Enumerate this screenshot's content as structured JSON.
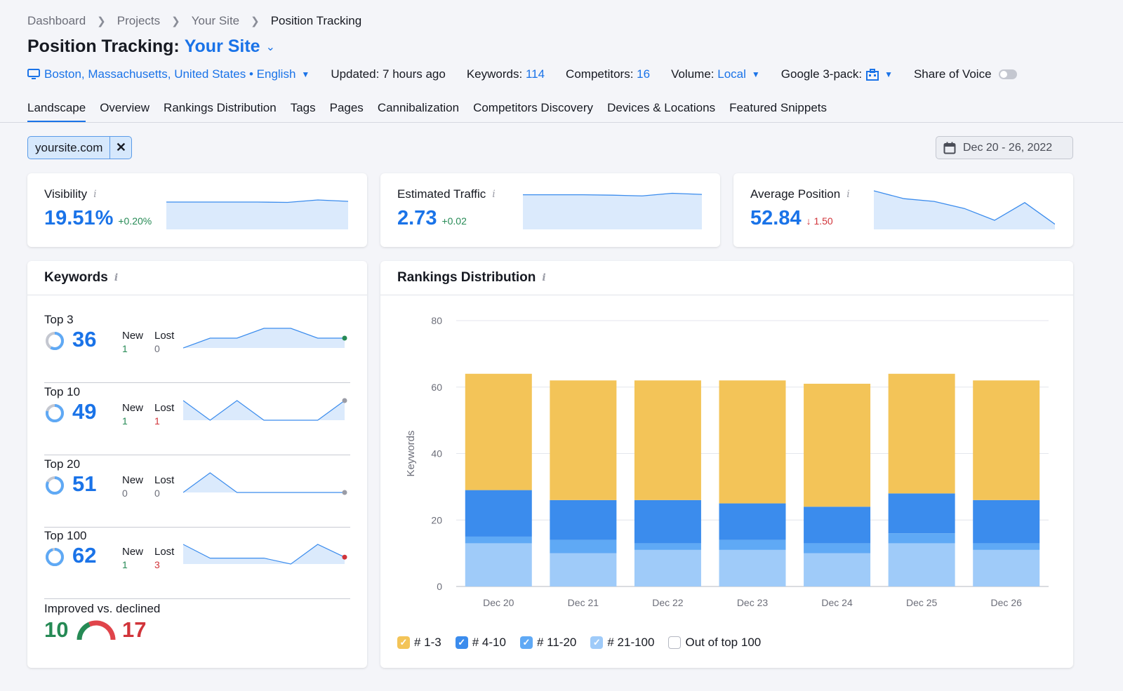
{
  "breadcrumb": [
    "Dashboard",
    "Projects",
    "Your Site",
    "Position Tracking"
  ],
  "title": {
    "prefix": "Position Tracking:",
    "site": "Your Site"
  },
  "meta": {
    "location": "Boston, Massachusetts, United States • English",
    "updated": "Updated: 7 hours ago",
    "keywords_label": "Keywords:",
    "keywords_value": "114",
    "competitors_label": "Competitors:",
    "competitors_value": "16",
    "volume_label": "Volume:",
    "volume_value": "Local",
    "google_label": "Google 3-pack:",
    "sov_label": "Share of Voice"
  },
  "tabs": [
    "Landscape",
    "Overview",
    "Rankings Distribution",
    "Tags",
    "Pages",
    "Cannibalization",
    "Competitors Discovery",
    "Devices & Locations",
    "Featured Snippets"
  ],
  "filter": {
    "label": "yoursite.com"
  },
  "date_range": "Dec 20 - 26, 2022",
  "stats": [
    {
      "label": "Visibility",
      "value": "19.51%",
      "delta": "+0.20%",
      "trend": [
        0.8,
        0.8,
        0.8,
        0.8,
        0.79,
        0.86,
        0.82
      ]
    },
    {
      "label": "Estimated Traffic",
      "value": "2.73",
      "delta": "+0.02",
      "trend": [
        0.95,
        0.95,
        0.95,
        0.94,
        0.92,
        0.99,
        0.96
      ]
    },
    {
      "label": "Average Position",
      "value": "52.84",
      "delta": "↓ 1.50",
      "trend": [
        1.0,
        0.8,
        0.73,
        0.55,
        0.25,
        0.7,
        0.15
      ]
    }
  ],
  "keywords_card": {
    "title": "Keywords",
    "new_label": "New",
    "lost_label": "Lost",
    "rows": [
      {
        "name": "Top 3",
        "value": "36",
        "new": "1",
        "lost": "0",
        "fill": 0.58,
        "trend": [
          0.0,
          0.5,
          0.5,
          1.0,
          1.0,
          0.5,
          0.5
        ],
        "dot": "#268a55"
      },
      {
        "name": "Top 10",
        "value": "49",
        "new": "1",
        "lost": "1",
        "fill": 0.79,
        "trend": [
          1.0,
          0.0,
          1.0,
          0.0,
          0.0,
          0.0,
          1.0
        ],
        "dot": "#9a9ca6"
      },
      {
        "name": "Top 20",
        "value": "51",
        "new": "0",
        "lost": "0",
        "fill": 0.82,
        "trend": [
          0.0,
          1.0,
          0.0,
          0.0,
          0.0,
          0.0,
          0.0
        ],
        "dot": "#9a9ca6"
      },
      {
        "name": "Top 100",
        "value": "62",
        "new": "1",
        "lost": "3",
        "fill": 0.95,
        "trend": [
          1.0,
          0.3,
          0.3,
          0.3,
          0.0,
          1.0,
          0.35
        ],
        "dot": "#d1343a"
      }
    ],
    "improved_label": "Improved vs. declined",
    "improved": "10",
    "declined": "17"
  },
  "chart_data": {
    "type": "bar",
    "title": "Rankings Distribution",
    "ylabel": "Keywords",
    "ylim": [
      0,
      80
    ],
    "yticks": [
      0,
      20,
      40,
      60,
      80
    ],
    "categories": [
      "Dec 20",
      "Dec 21",
      "Dec 22",
      "Dec 23",
      "Dec 24",
      "Dec 25",
      "Dec 26"
    ],
    "stacked": true,
    "series": [
      {
        "name": "# 21-100",
        "color": "#9fcbf9",
        "values": [
          13,
          10,
          11,
          11,
          10,
          13,
          11
        ]
      },
      {
        "name": "# 11-20",
        "color": "#5fa9f5",
        "values": [
          2,
          4,
          2,
          3,
          3,
          3,
          2
        ]
      },
      {
        "name": "# 4-10",
        "color": "#3b8ced",
        "values": [
          14,
          12,
          13,
          11,
          11,
          12,
          13
        ]
      },
      {
        "name": "# 1-3",
        "color": "#f3c458",
        "values": [
          35,
          36,
          36,
          37,
          37,
          36,
          36
        ]
      }
    ],
    "legend": [
      {
        "name": "# 1-3",
        "color": "#f3c458",
        "checked": true
      },
      {
        "name": "# 4-10",
        "color": "#3b8ced",
        "checked": true
      },
      {
        "name": "# 11-20",
        "color": "#5fa9f5",
        "checked": true
      },
      {
        "name": "# 21-100",
        "color": "#9fcbf9",
        "checked": true
      },
      {
        "name": "Out of top 100",
        "color": "#ffffff",
        "checked": false
      }
    ],
    "legend_position": "bottom-left",
    "grid": true
  }
}
